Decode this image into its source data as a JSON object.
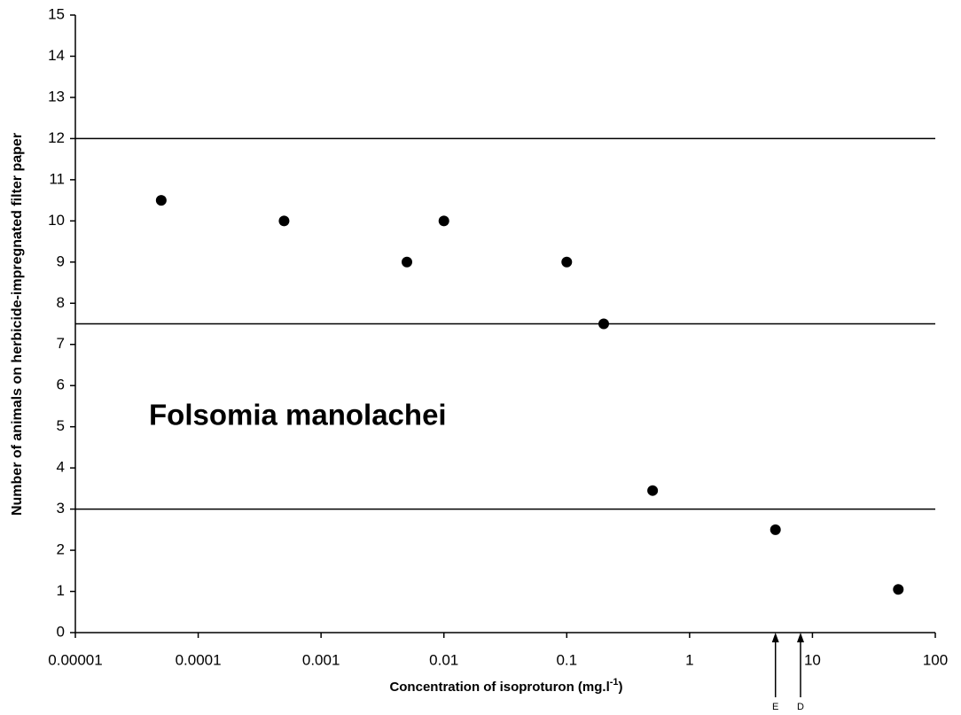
{
  "chart_data": {
    "type": "scatter",
    "x_label": [
      "Concentration of isoproturon (mg.l",
      "-1",
      ")"
    ],
    "y_label": "Number of animals on herbicide-impregnated filter paper",
    "annotation": "Folsomia manolachei",
    "x": [
      5e-05,
      0.0005,
      0.005,
      0.01,
      0.1,
      0.2,
      0.5,
      5,
      50
    ],
    "series": [
      {
        "color": "#000000",
        "values": [
          10.5,
          10,
          9,
          10,
          9,
          7.5,
          3.45,
          2.5,
          1.05
        ]
      }
    ],
    "xscale": "log",
    "xlim": [
      1e-05,
      100
    ],
    "xticks": [
      {
        "value": 1e-05,
        "label": "0.00001"
      },
      0.0001,
      0.001,
      0.01,
      0.1,
      1,
      10,
      100
    ],
    "ylim": [
      0,
      15
    ],
    "yticks": [
      0,
      1,
      2,
      3,
      4,
      5,
      6,
      7,
      8,
      9,
      10,
      11,
      12,
      13,
      14,
      15
    ],
    "hlines": [
      12,
      7.5,
      3
    ],
    "markers": [
      {
        "value": 5,
        "label": "E"
      },
      {
        "value": 8,
        "label": "D"
      }
    ]
  }
}
